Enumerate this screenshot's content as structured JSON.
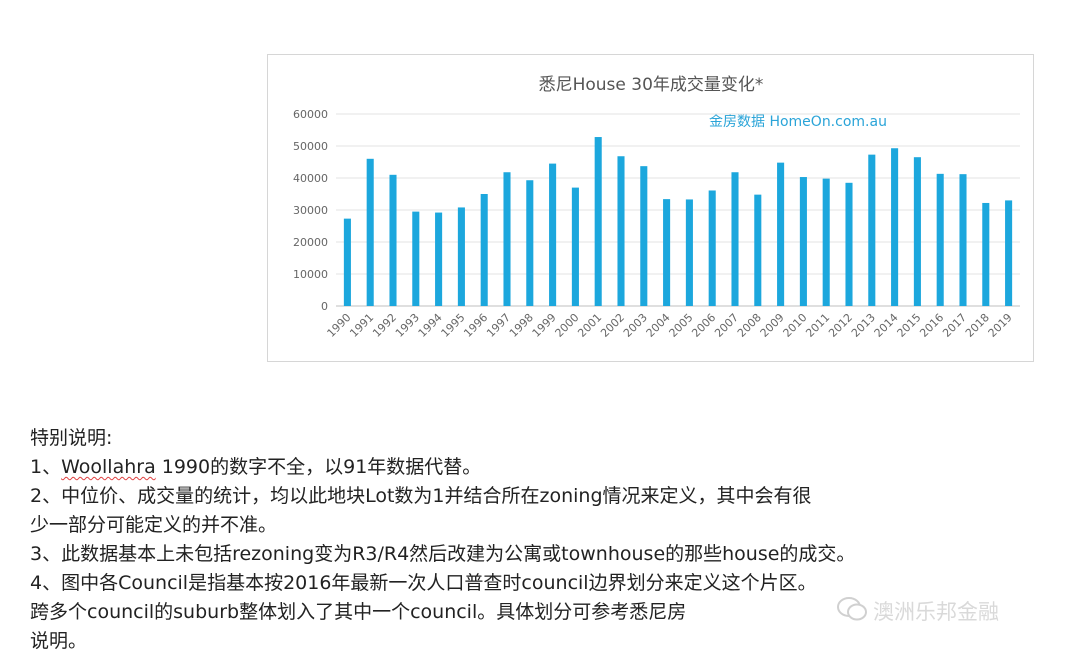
{
  "chart_data": {
    "type": "bar",
    "title": "悉尼House 30年成交量变化*",
    "watermark": "金房数据   HomeOn.com.au",
    "categories": [
      "1990",
      "1991",
      "1992",
      "1993",
      "1994",
      "1995",
      "1996",
      "1997",
      "1998",
      "1999",
      "2000",
      "2001",
      "2002",
      "2003",
      "2004",
      "2005",
      "2006",
      "2007",
      "2008",
      "2009",
      "2010",
      "2011",
      "2012",
      "2013",
      "2014",
      "2015",
      "2016",
      "2017",
      "2018",
      "2019"
    ],
    "series": [
      {
        "values": [
          27300,
          46000,
          41000,
          29500,
          29200,
          30800,
          35000,
          41800,
          39300,
          44500,
          37000,
          52800,
          46800,
          43700,
          33400,
          33300,
          36100,
          41800,
          34800,
          44800,
          40300,
          39800,
          38500,
          47300,
          49300,
          46500,
          41300,
          41200,
          32200,
          33000
        ],
        "color": "#1ca7dd"
      }
    ],
    "ylim": [
      0,
      60000
    ],
    "yticks": [
      "0",
      "10000",
      "20000",
      "30000",
      "40000",
      "50000",
      "60000"
    ],
    "grid": true,
    "legend": "none"
  },
  "notes": {
    "heading": "特别说明:",
    "item1_prefix": "1、",
    "item1_word": "Woollahra",
    "item1_rest": " 1990的数字不全，以91年数据代替。",
    "item2_line1": "2、中位价、成交量的统计，均以此地块Lot数为1并结合所在zoning情况来定义，其中会有很",
    "item2_line2": "少一部分可能定义的并不准。",
    "item3": "3、此数据基本上未包括rezoning变为R3/R4然后改建为公寓或townhouse的那些house的成交。",
    "item4_line1": "4、图中各Council是指基本按2016年最新一次人口普查时council边界划分来定义这个片区。",
    "item4_line2": "跨多个council的suburb整体划入了其中一个council。具体划分可参考悉尼房",
    "item4_line3": "说明。"
  },
  "logo": {
    "text": "澳洲乐邦金融"
  }
}
